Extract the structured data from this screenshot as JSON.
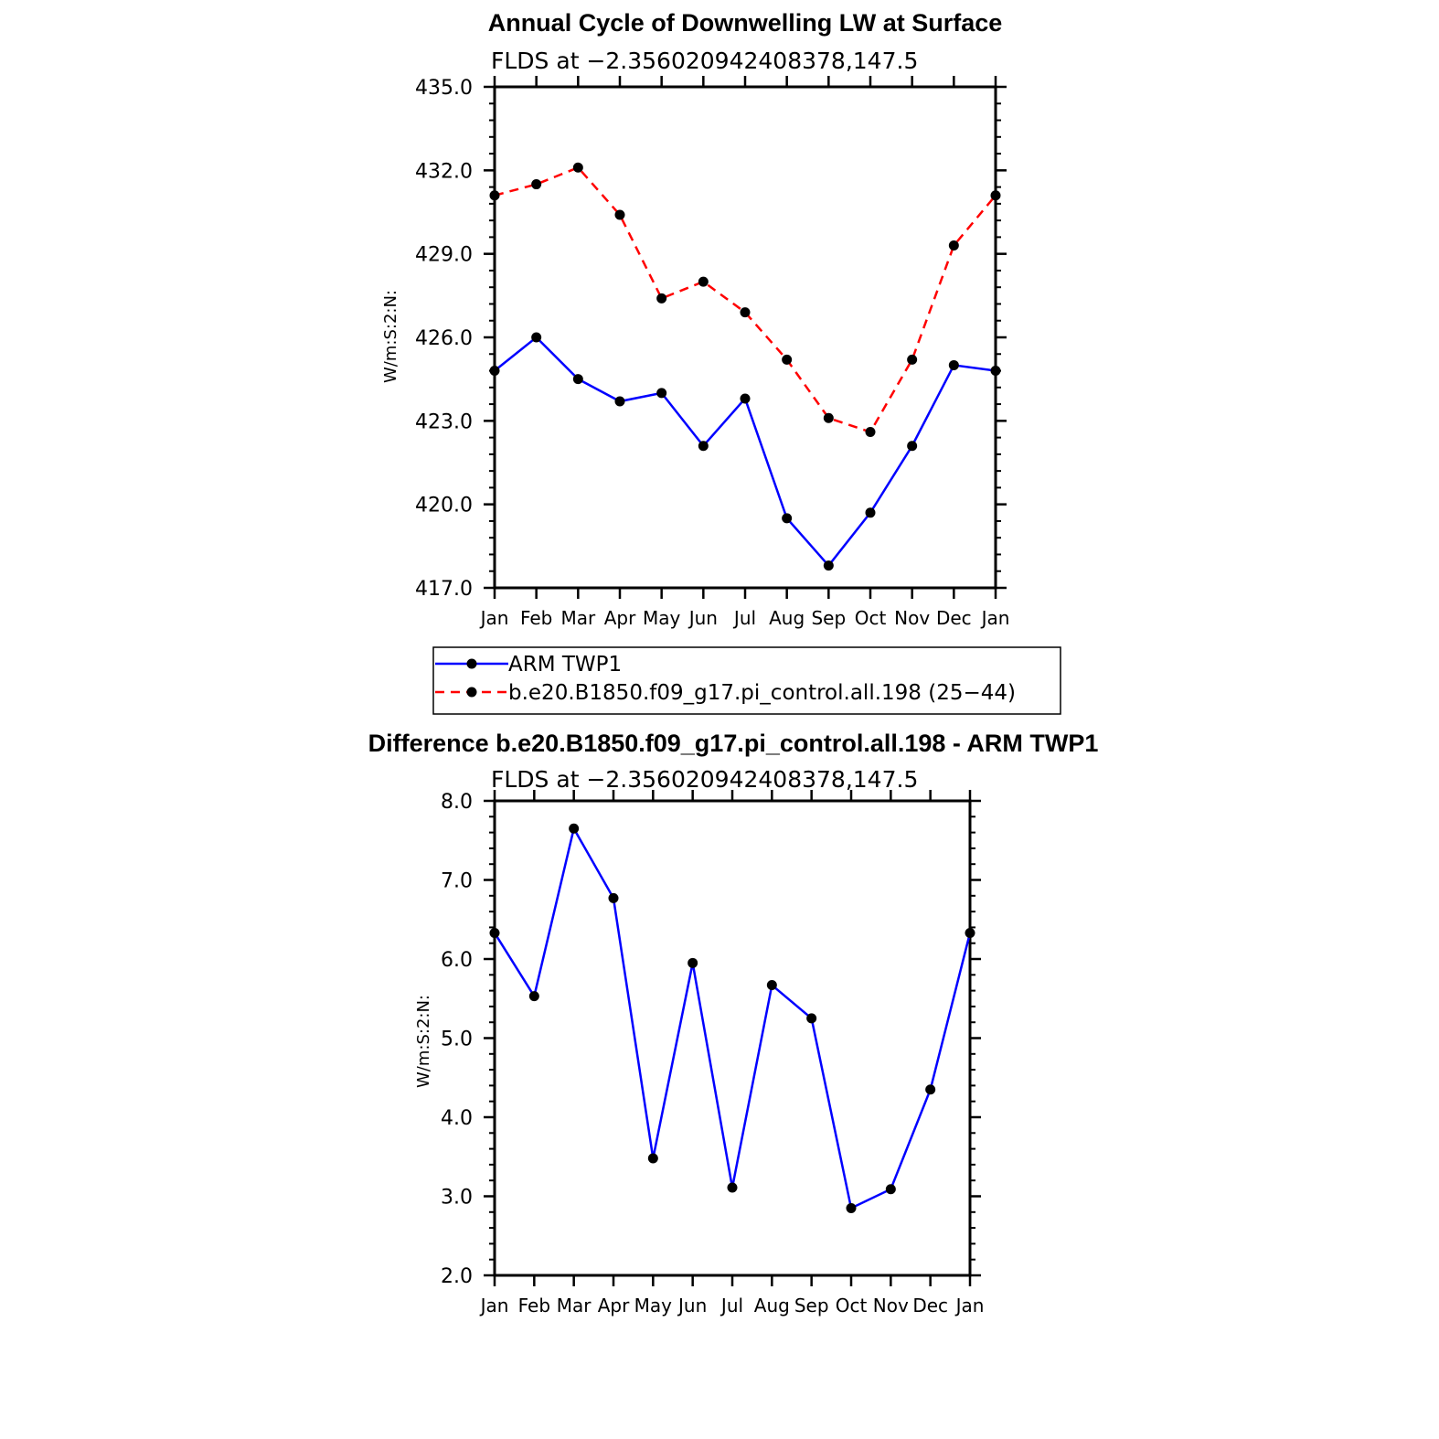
{
  "chart_data": [
    {
      "type": "line",
      "title": "Annual Cycle of Downwelling LW at Surface",
      "subtitle": "FLDS at −2.356020942408378,147.5",
      "ylabel": "W/m:S:2:N:",
      "xlabel": "",
      "categories": [
        "Jan",
        "Feb",
        "Mar",
        "Apr",
        "May",
        "Jun",
        "Jul",
        "Aug",
        "Sep",
        "Oct",
        "Nov",
        "Dec",
        "Jan"
      ],
      "ylim": [
        417.0,
        435.0
      ],
      "yticks": [
        "417.0",
        "420.0",
        "423.0",
        "426.0",
        "429.0",
        "432.0",
        "435.0"
      ],
      "grid": false,
      "series": [
        {
          "name": "ARM TWP1",
          "color": "#0000ff",
          "dash": "solid",
          "values": [
            424.8,
            426.0,
            424.5,
            423.7,
            424.0,
            422.1,
            423.8,
            419.5,
            417.8,
            419.7,
            422.1,
            425.0,
            424.8
          ]
        },
        {
          "name": "b.e20.B1850.f09_g17.pi_control.all.198 (25−44)",
          "color": "#ff0000",
          "dash": "dashed",
          "values": [
            431.1,
            431.5,
            432.1,
            430.4,
            427.4,
            428.0,
            426.9,
            425.2,
            423.1,
            422.6,
            425.2,
            429.3,
            431.1
          ]
        }
      ],
      "legend": "below"
    },
    {
      "type": "line",
      "title": "Difference b.e20.B1850.f09_g17.pi_control.all.198 - ARM TWP1",
      "subtitle": "FLDS at −2.356020942408378,147.5",
      "ylabel": "W/m:S:2:N:",
      "xlabel": "",
      "categories": [
        "Jan",
        "Feb",
        "Mar",
        "Apr",
        "May",
        "Jun",
        "Jul",
        "Aug",
        "Sep",
        "Oct",
        "Nov",
        "Dec",
        "Jan"
      ],
      "ylim": [
        2.0,
        8.0
      ],
      "yticks": [
        "2.0",
        "3.0",
        "4.0",
        "5.0",
        "6.0",
        "7.0",
        "8.0"
      ],
      "grid": false,
      "series": [
        {
          "color": "#0000ff",
          "dash": "solid",
          "values": [
            6.33,
            5.53,
            7.65,
            6.77,
            3.48,
            5.95,
            3.11,
            5.67,
            5.25,
            2.85,
            3.09,
            4.35,
            6.33
          ]
        }
      ]
    }
  ]
}
